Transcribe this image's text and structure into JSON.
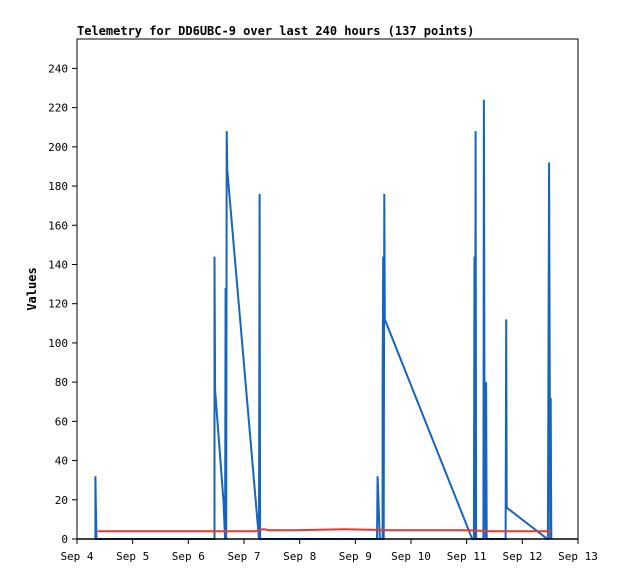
{
  "chart_data": {
    "type": "line",
    "title": "Telemetry for DD6UBC-9 over last 240 hours (137 points)",
    "xlabel": "",
    "ylabel": "Values",
    "x_ticks": [
      "Sep 4",
      "Sep 5",
      "Sep 6",
      "Sep 7",
      "Sep 8",
      "Sep 9",
      "Sep 10",
      "Sep 11",
      "Sep 12",
      "Sep 13"
    ],
    "y_ticks": [
      0,
      20,
      40,
      60,
      80,
      100,
      120,
      140,
      160,
      180,
      200,
      220,
      240
    ],
    "xlim": [
      4.0,
      13.0
    ],
    "ylim": [
      0,
      255
    ],
    "grid": false,
    "legend": "none",
    "series": [
      {
        "color": "#1565c0",
        "points": [
          [
            4.33,
            0
          ],
          [
            4.33,
            32
          ],
          [
            4.34,
            16
          ],
          [
            4.35,
            0
          ],
          [
            6.47,
            0
          ],
          [
            6.47,
            144
          ],
          [
            6.48,
            76
          ],
          [
            6.63,
            20
          ],
          [
            6.66,
            0
          ],
          [
            6.67,
            128
          ],
          [
            6.68,
            0
          ],
          [
            6.69,
            208
          ],
          [
            6.7,
            188
          ],
          [
            7.27,
            0
          ],
          [
            7.28,
            176
          ],
          [
            7.29,
            0
          ],
          [
            9.39,
            0
          ],
          [
            9.4,
            32
          ],
          [
            9.42,
            16
          ],
          [
            9.44,
            0
          ],
          [
            9.49,
            0
          ],
          [
            9.49,
            80
          ],
          [
            9.5,
            144
          ],
          [
            9.51,
            0
          ],
          [
            9.52,
            176
          ],
          [
            9.53,
            112
          ],
          [
            11.1,
            0
          ],
          [
            11.13,
            0
          ],
          [
            11.14,
            144
          ],
          [
            11.15,
            0
          ],
          [
            11.16,
            208
          ],
          [
            11.17,
            0
          ],
          [
            11.3,
            0
          ],
          [
            11.31,
            224
          ],
          [
            11.32,
            60
          ],
          [
            11.34,
            0
          ],
          [
            11.35,
            80
          ],
          [
            11.36,
            0
          ],
          [
            11.7,
            0
          ],
          [
            11.71,
            112
          ],
          [
            11.72,
            16
          ],
          [
            12.45,
            0
          ],
          [
            12.46,
            0
          ],
          [
            12.47,
            96
          ],
          [
            12.48,
            192
          ],
          [
            12.5,
            0
          ],
          [
            12.51,
            72
          ],
          [
            12.52,
            0
          ]
        ]
      },
      {
        "color": "#e53935",
        "points": [
          [
            4.37,
            4
          ],
          [
            7.2,
            4
          ],
          [
            7.27,
            4.5
          ],
          [
            7.35,
            5
          ],
          [
            7.45,
            4.5
          ],
          [
            7.9,
            4.5
          ],
          [
            8.8,
            5
          ],
          [
            9.6,
            4.5
          ],
          [
            10.1,
            4.5
          ],
          [
            10.9,
            4.5
          ],
          [
            11.05,
            4.5
          ],
          [
            11.4,
            4
          ],
          [
            12.52,
            4
          ]
        ]
      }
    ]
  }
}
